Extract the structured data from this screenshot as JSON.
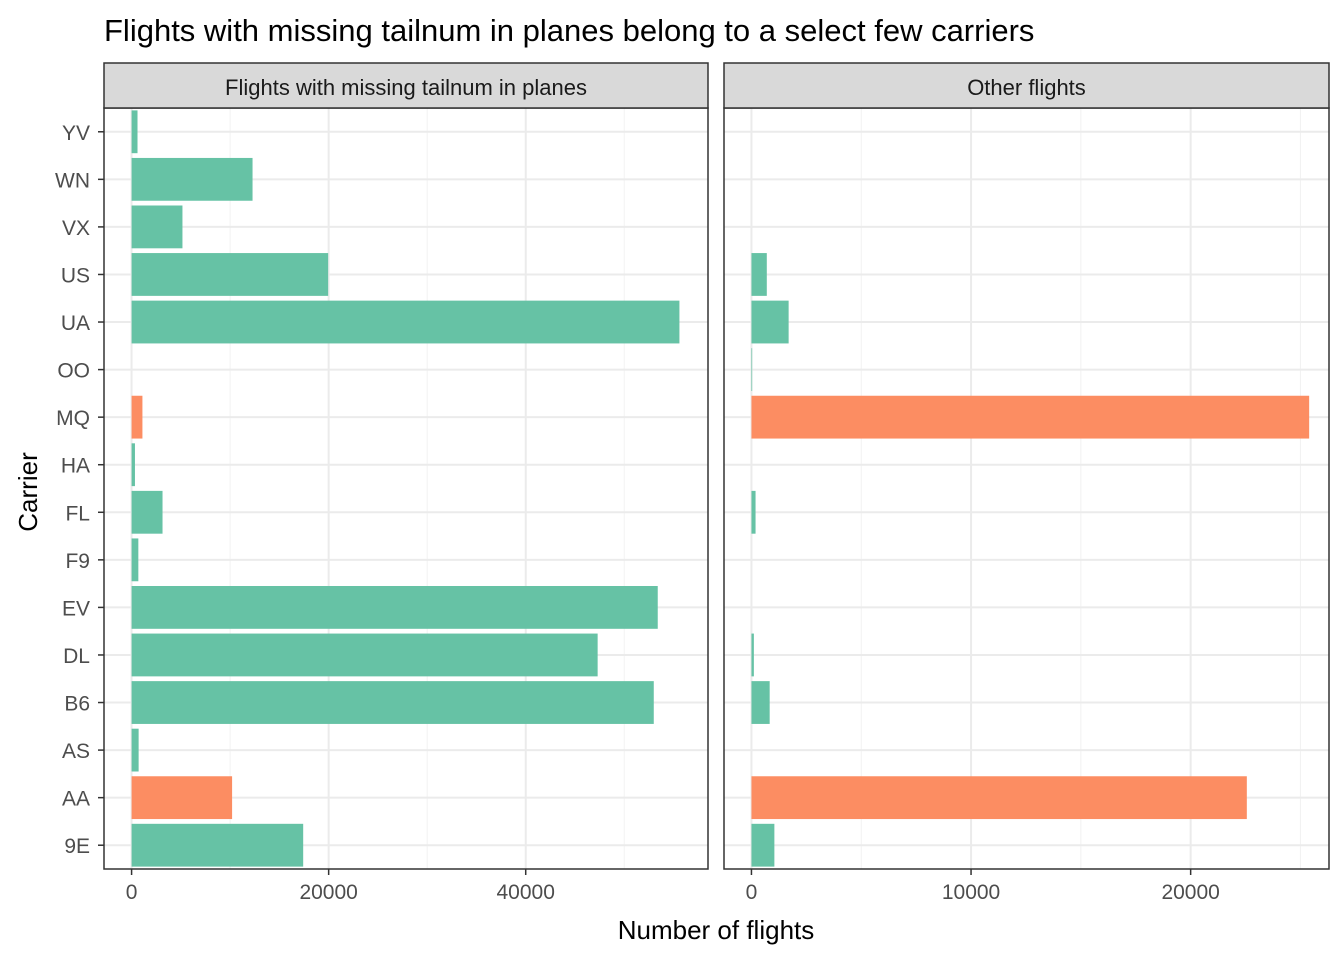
{
  "chart_data": {
    "type": "bar",
    "orientation": "horizontal",
    "title": "Flights with missing tailnum in planes belong to a select few carriers",
    "xlabel": "Number of flights",
    "ylabel": "Carrier",
    "grid": true,
    "categories": [
      "9E",
      "AA",
      "AS",
      "B6",
      "DL",
      "EV",
      "F9",
      "FL",
      "HA",
      "MQ",
      "OO",
      "UA",
      "US",
      "VX",
      "WN",
      "YV"
    ],
    "colors": {
      "default": "#66c2a5",
      "highlight": "#fc8d62"
    },
    "highlight_categories": [
      "AA",
      "MQ"
    ],
    "panels": [
      {
        "label": "Flights with missing tailnum in planes",
        "xlim": [
          -2800,
          58500
        ],
        "xticks": [
          0,
          20000,
          40000
        ],
        "values": [
          17416,
          10200,
          714,
          52996,
          47300,
          53400,
          685,
          3140,
          342,
          1100,
          0,
          55600,
          19950,
          5162,
          12275,
          601
        ]
      },
      {
        "label": "Other flights",
        "xlim": [
          -1250,
          26300
        ],
        "xticks": [
          0,
          10000,
          20000
        ],
        "values": [
          1044,
          22558,
          0,
          830,
          110,
          0,
          0,
          187,
          0,
          25397,
          32,
          1693,
          699,
          0,
          0,
          0
        ]
      }
    ]
  }
}
